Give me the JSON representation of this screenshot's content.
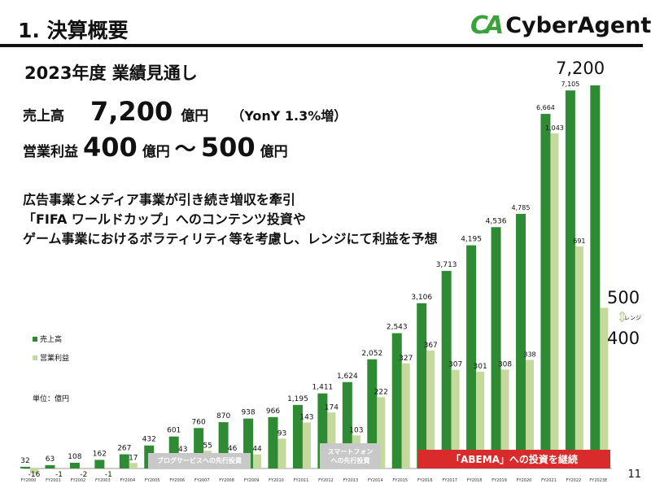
{
  "header": {
    "title": "1. 決算概要",
    "logo_mark": "CA",
    "logo_name": "CyberAgent",
    "logo_reg": "®"
  },
  "subtitle": "2023年度 業績見通し",
  "outlook": {
    "revenue_label": "売上高",
    "revenue_value": "7,200",
    "revenue_unit": "億円",
    "yoy": "（YonY 1.3%増）",
    "op_label": "営業利益",
    "op_low": "400",
    "op_unit1": "億円",
    "op_tilde": "～",
    "op_high": "500",
    "op_unit2": "億円"
  },
  "description": [
    "広告事業とメディア事業が引き続き増収を牽引",
    "「FIFA ワールドカップ」へのコンテンツ投資や",
    "ゲーム事業におけるボラティリティ等を考慮し、レンジにて利益を予想"
  ],
  "page_number": "11",
  "colors": {
    "revenue": "#2e8b34",
    "operating_income": "#c5d99c",
    "red": "#d92b2b",
    "gray": "#c8c8c8"
  },
  "chart_data": {
    "type": "bar",
    "unit_label": "単位：億円",
    "legend": [
      "売上高",
      "営業利益"
    ],
    "categories": [
      "FY2000",
      "FY2001",
      "FY2002",
      "FY2003",
      "FY2004",
      "FY2005",
      "FY2006",
      "FY2007",
      "FY2008",
      "FY2009",
      "FY2010",
      "FY2011",
      "FY2012",
      "FY2013",
      "FY2014",
      "FY2015",
      "FY2016",
      "FY2017",
      "FY2018",
      "FY2019",
      "FY2020",
      "FY2021",
      "FY2022",
      "FY2023E"
    ],
    "series": [
      {
        "name": "売上高",
        "values": [
          32,
          63,
          108,
          162,
          267,
          432,
          601,
          760,
          870,
          938,
          966,
          1195,
          1411,
          1624,
          2052,
          2543,
          3106,
          3713,
          4195,
          4536,
          4785,
          6664,
          7105,
          7200
        ],
        "labels": [
          "32",
          "63",
          "108",
          "162",
          "267",
          "432",
          "601",
          "760",
          "870",
          "938",
          "966",
          "1,195",
          "1,411",
          "1,624",
          "2,052",
          "2,543",
          "3,106",
          "3,713",
          "4,195",
          "4,536",
          "4,785",
          "6,664",
          "7,105",
          "7,200"
        ]
      },
      {
        "name": "営業利益",
        "values": [
          -16,
          -1,
          -2,
          -1,
          17,
          30,
          43,
          55,
          46,
          44,
          93,
          143,
          174,
          103,
          222,
          327,
          367,
          307,
          301,
          308,
          338,
          1043,
          691,
          500
        ],
        "labels": [
          "-16",
          "-1",
          "-2",
          "-1",
          "17",
          "",
          "43",
          "55",
          "46",
          "44",
          "93",
          "143",
          "174",
          "103",
          "222",
          "327",
          "367",
          "307",
          "301",
          "308",
          "338",
          "1,043",
          "691",
          ""
        ]
      }
    ],
    "forecast_range": {
      "high": "500",
      "low": "400",
      "label": "レンジ"
    },
    "annotations": [
      "ブログサービスへの先行投資",
      "スマートフォンへの先行投資",
      "「ABEMA」への投資を継続"
    ]
  }
}
